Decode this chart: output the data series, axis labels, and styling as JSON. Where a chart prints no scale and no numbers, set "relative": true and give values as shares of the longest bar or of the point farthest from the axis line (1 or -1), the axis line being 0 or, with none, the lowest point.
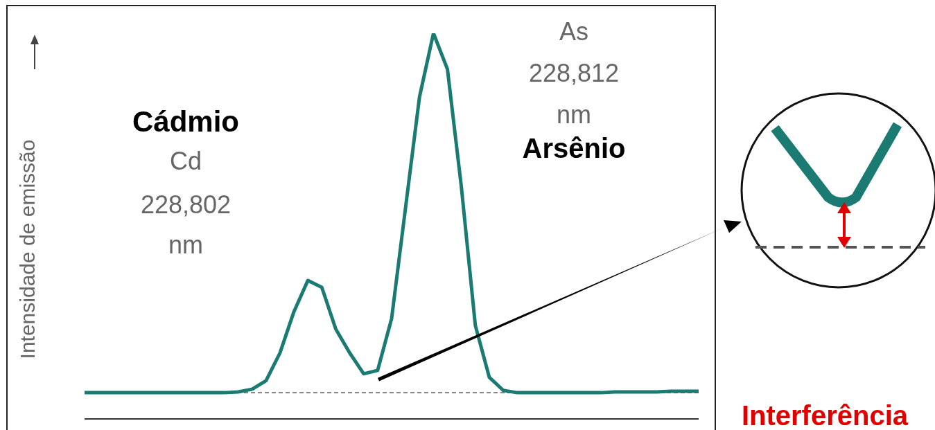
{
  "chart_data": {
    "type": "line",
    "relative": true,
    "ylabel": "Intensidade de emissão",
    "grid": false,
    "legend": false,
    "marker": "none",
    "categories": [
      null,
      null,
      null,
      null,
      null,
      null,
      null,
      null,
      null,
      null,
      null,
      null,
      null,
      null,
      null,
      null,
      null,
      null,
      null,
      null,
      null,
      null,
      null,
      null,
      null,
      null,
      null,
      null,
      null,
      null,
      null,
      null,
      null,
      null,
      null,
      null,
      null,
      null,
      null,
      null,
      null,
      null,
      null,
      null,
      null
    ],
    "series": [
      {
        "color": "#1b7b72",
        "line_style": "solid",
        "values": [
          0.068,
          0.068,
          0.068,
          0.068,
          0.068,
          0.068,
          0.068,
          0.068,
          0.068,
          0.068,
          0.068,
          0.07,
          0.077,
          0.099,
          0.171,
          0.278,
          0.359,
          0.341,
          0.233,
          0.171,
          0.117,
          0.126,
          0.26,
          0.548,
          0.835,
          1,
          0.907,
          0.601,
          0.242,
          0.108,
          0.074,
          0.068,
          0.068,
          0.068,
          0.068,
          0.068,
          0.068,
          0.068,
          0.07,
          0.07,
          0.07,
          0.07,
          0.072,
          0.072,
          0.072
        ]
      }
    ],
    "ref_lines": [
      {
        "axis": "y",
        "value": 0.068,
        "color": "#000000",
        "line_style": "dashed"
      }
    ],
    "annotations": [
      "Cádmio",
      "Cd",
      "228,802",
      "nm",
      "As",
      "228,812",
      "nm",
      "Arsênio",
      "Interferência"
    ]
  }
}
